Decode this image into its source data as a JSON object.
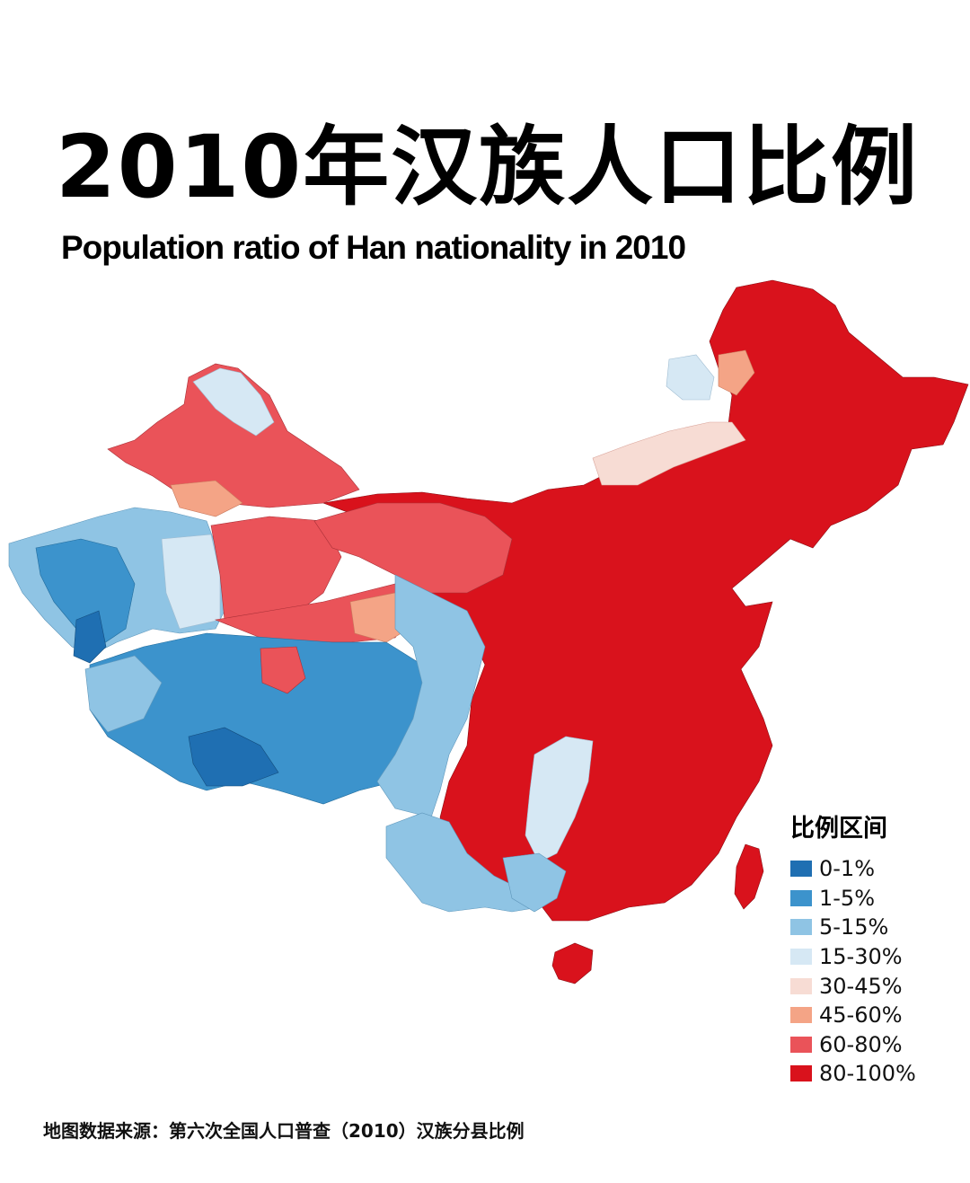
{
  "title_zh": "2010年汉族人口比例",
  "title_en": "Population ratio of Han nationality in 2010",
  "legend": {
    "title": "比例区间",
    "items": [
      {
        "label": "0-1%",
        "color": "#1f6fb2"
      },
      {
        "label": "1-5%",
        "color": "#3c93cc"
      },
      {
        "label": "5-15%",
        "color": "#8fc4e4"
      },
      {
        "label": "15-30%",
        "color": "#d6e8f4"
      },
      {
        "label": "30-45%",
        "color": "#f7dcd4"
      },
      {
        "label": "45-60%",
        "color": "#f4a486"
      },
      {
        "label": "60-80%",
        "color": "#ea5359"
      },
      {
        "label": "80-100%",
        "color": "#d9121c"
      }
    ]
  },
  "source": "地图数据来源：第六次全国人口普查（2010）汉族分县比例"
}
